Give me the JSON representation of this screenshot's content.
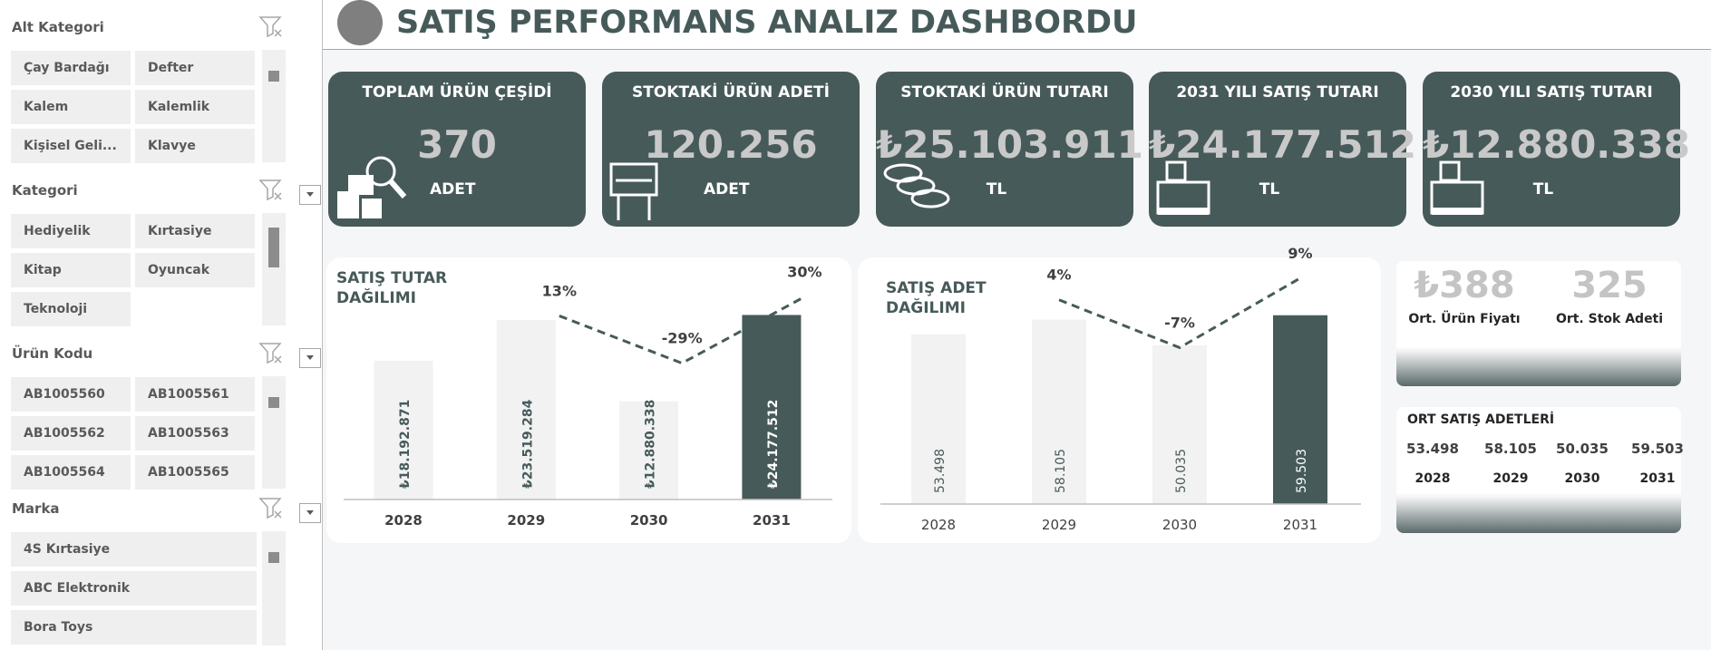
{
  "header": {
    "title": "SATIŞ PERFORMANS ANALIZ DASHBORDU"
  },
  "slicers": [
    {
      "title": "Alt Kategori",
      "items": [
        "Çay Bardağı",
        "Defter",
        "Kalem",
        "Kalemlik",
        "Kişisel Geli...",
        "Klavye"
      ]
    },
    {
      "title": "Kategori",
      "items": [
        "Hediyelik",
        "Kırtasiye",
        "Kitap",
        "Oyuncak",
        "Teknoloji"
      ]
    },
    {
      "title": "Ürün Kodu",
      "items": [
        "AB1005560",
        "AB1005561",
        "AB1005562",
        "AB1005563",
        "AB1005564",
        "AB1005565"
      ]
    },
    {
      "title": "Marka",
      "items": [
        "4S Kırtasiye",
        "ABC Elektronik",
        "Bora Toys"
      ]
    }
  ],
  "kpis": [
    {
      "title": "TOPLAM ÜRÜN ÇEŞİDİ",
      "value": "370",
      "unit": "ADET"
    },
    {
      "title": "STOKTAKİ ÜRÜN ADETİ",
      "value": "120.256",
      "unit": "ADET"
    },
    {
      "title": "STOKTAKİ ÜRÜN TUTARI",
      "value": "₺25.103.911",
      "unit": "TL"
    },
    {
      "title": "2031 YILI SATIŞ TUTARI",
      "value": "₺24.177.512",
      "unit": "TL"
    },
    {
      "title": "2030 YILI SATIŞ TUTARI",
      "value": "₺12.880.338",
      "unit": "TL"
    }
  ],
  "chart_data": [
    {
      "type": "bar",
      "title": "SATIŞ TUTAR DAĞILIMI",
      "categories": [
        "2028",
        "2029",
        "2030",
        "2031"
      ],
      "values": [
        18192871,
        23519284,
        12880338,
        24177512
      ],
      "value_labels": [
        "₺18.192.871",
        "₺23.519.284",
        "₺12.880.338",
        "₺24.177.512"
      ],
      "colors": [
        "#f2f2f2",
        "#f2f2f2",
        "#f2f2f2",
        "#475a5a"
      ],
      "ylim": [
        0,
        31000000
      ],
      "line": {
        "axis": "y2",
        "values": [
          null,
          13,
          -29,
          30
        ],
        "value_labels": [
          null,
          "13%",
          "-29%",
          "30%"
        ],
        "color": "#475a5a"
      },
      "y2lim": [
        -150,
        60
      ]
    },
    {
      "type": "bar",
      "title": "SATIŞ ADET DAĞILIMI",
      "categories": [
        "2028",
        "2029",
        "2030",
        "2031"
      ],
      "values": [
        53498,
        58105,
        50035,
        59503
      ],
      "value_labels": [
        "53.498",
        "58.105",
        "50.035",
        "59.503"
      ],
      "colors": [
        "#f2f2f2",
        "#f2f2f2",
        "#f2f2f2",
        "#475a5a"
      ],
      "ylim": [
        0,
        76000
      ],
      "line": {
        "axis": "y2",
        "values": [
          null,
          4,
          -7,
          9
        ],
        "value_labels": [
          null,
          "4%",
          "-7%",
          "9%"
        ],
        "color": "#475a5a"
      },
      "y2lim": [
        -43,
        12.5
      ]
    }
  ],
  "averages": [
    {
      "value": "₺388",
      "label": "Ort. Ürün Fiyatı"
    },
    {
      "value": "325",
      "label": "Ort. Stok Adeti"
    }
  ],
  "ort_satis": {
    "title": "ORT SATIŞ ADETLERİ",
    "values": [
      "53.498",
      "58.105",
      "50.035",
      "59.503"
    ],
    "years": [
      "2028",
      "2029",
      "2030",
      "2031"
    ]
  }
}
